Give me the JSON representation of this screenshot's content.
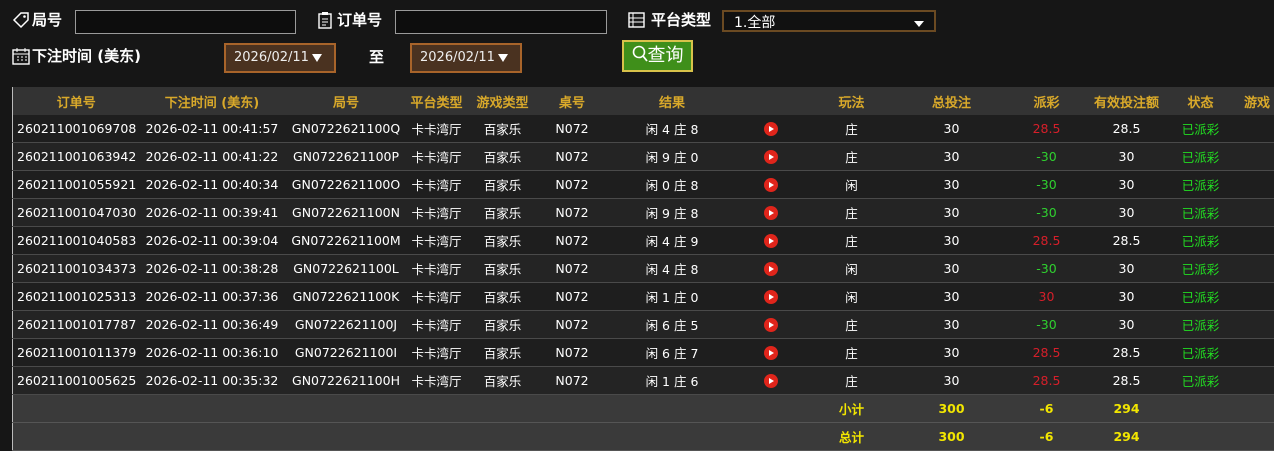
{
  "filters": {
    "round_label": "局号",
    "order_label": "订单号",
    "platform_label": "平台类型",
    "platform_value": "1.全部",
    "time_label": "下注时间 (美东)",
    "date_from": "2026/02/11",
    "to_label": "至",
    "date_to": "2026/02/11",
    "search_button": "查询"
  },
  "table": {
    "columns": [
      "订单号",
      "下注时间 (美东)",
      "局号",
      "平台类型",
      "游戏类型",
      "桌号",
      "结果",
      "玩法",
      "总投注",
      "派彩",
      "有效投注额",
      "状态",
      "游戏"
    ],
    "rows": [
      [
        "260211001069708",
        "2026-02-11 00:41:57",
        "GN0722621100Q",
        "卡卡湾厅",
        "百家乐",
        "N072",
        "闲 4 庄 8",
        "庄",
        30,
        28.5,
        28.5,
        "已派彩"
      ],
      [
        "260211001063942",
        "2026-02-11 00:41:22",
        "GN0722621100P",
        "卡卡湾厅",
        "百家乐",
        "N072",
        "闲 9 庄 0",
        "庄",
        30,
        -30,
        30,
        "已派彩"
      ],
      [
        "260211001055921",
        "2026-02-11 00:40:34",
        "GN0722621100O",
        "卡卡湾厅",
        "百家乐",
        "N072",
        "闲 0 庄 8",
        "闲",
        30,
        -30,
        30,
        "已派彩"
      ],
      [
        "260211001047030",
        "2026-02-11 00:39:41",
        "GN0722621100N",
        "卡卡湾厅",
        "百家乐",
        "N072",
        "闲 9 庄 8",
        "庄",
        30,
        -30,
        30,
        "已派彩"
      ],
      [
        "260211001040583",
        "2026-02-11 00:39:04",
        "GN0722621100M",
        "卡卡湾厅",
        "百家乐",
        "N072",
        "闲 4 庄 9",
        "庄",
        30,
        28.5,
        28.5,
        "已派彩"
      ],
      [
        "260211001034373",
        "2026-02-11 00:38:28",
        "GN0722621100L",
        "卡卡湾厅",
        "百家乐",
        "N072",
        "闲 4 庄 8",
        "闲",
        30,
        -30,
        30,
        "已派彩"
      ],
      [
        "260211001025313",
        "2026-02-11 00:37:36",
        "GN0722621100K",
        "卡卡湾厅",
        "百家乐",
        "N072",
        "闲 1 庄 0",
        "闲",
        30,
        30,
        30,
        "已派彩"
      ],
      [
        "260211001017787",
        "2026-02-11 00:36:49",
        "GN0722621100J",
        "卡卡湾厅",
        "百家乐",
        "N072",
        "闲 6 庄 5",
        "庄",
        30,
        -30,
        30,
        "已派彩"
      ],
      [
        "260211001011379",
        "2026-02-11 00:36:10",
        "GN0722621100I",
        "卡卡湾厅",
        "百家乐",
        "N072",
        "闲 6 庄 7",
        "庄",
        30,
        28.5,
        28.5,
        "已派彩"
      ],
      [
        "260211001005625",
        "2026-02-11 00:35:32",
        "GN0722621100H",
        "卡卡湾厅",
        "百家乐",
        "N072",
        "闲 1 庄 6",
        "庄",
        30,
        28.5,
        28.5,
        "已派彩"
      ]
    ],
    "subtotal": {
      "label": "小计",
      "total_bet": 300,
      "payout": -6,
      "valid_bet": 294
    },
    "grand_total": {
      "label": "总计",
      "total_bet": 300,
      "payout": -6,
      "valid_bet": 294
    }
  }
}
